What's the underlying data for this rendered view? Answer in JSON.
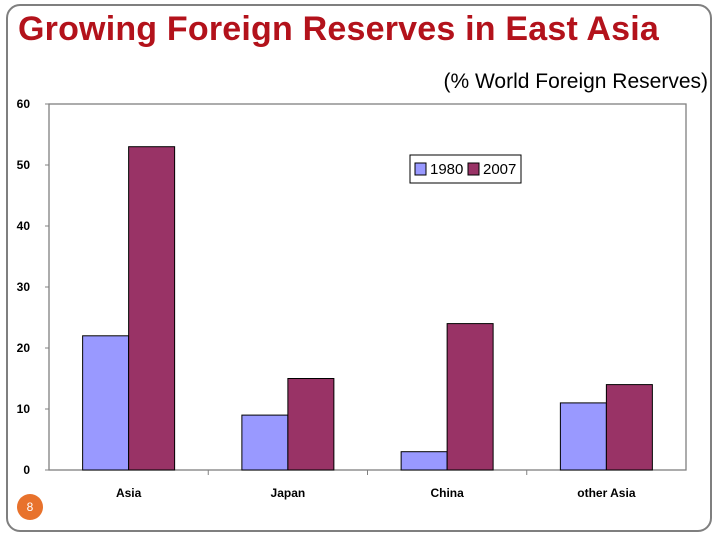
{
  "slide": {
    "title": "Growing Foreign Reserves in East Asia",
    "subtitle": "(% World Foreign Reserves)",
    "page_number": "8"
  },
  "colors": {
    "title": "#b3121b",
    "series_1980": "#9999ff",
    "series_2007": "#993366",
    "badge": "#e8722c"
  },
  "chart_data": {
    "type": "bar",
    "title": "",
    "xlabel": "",
    "ylabel": "",
    "categories": [
      "Asia",
      "Japan",
      "China",
      "other Asia"
    ],
    "series": [
      {
        "name": "1980",
        "values": [
          22,
          9,
          3,
          11
        ]
      },
      {
        "name": "2007",
        "values": [
          53,
          15,
          24,
          14
        ]
      }
    ],
    "ylim": [
      0,
      60
    ],
    "yticks": [
      "0",
      "10",
      "20",
      "30",
      "40",
      "50",
      "60"
    ],
    "grid": false,
    "legend_position": "top-right"
  }
}
